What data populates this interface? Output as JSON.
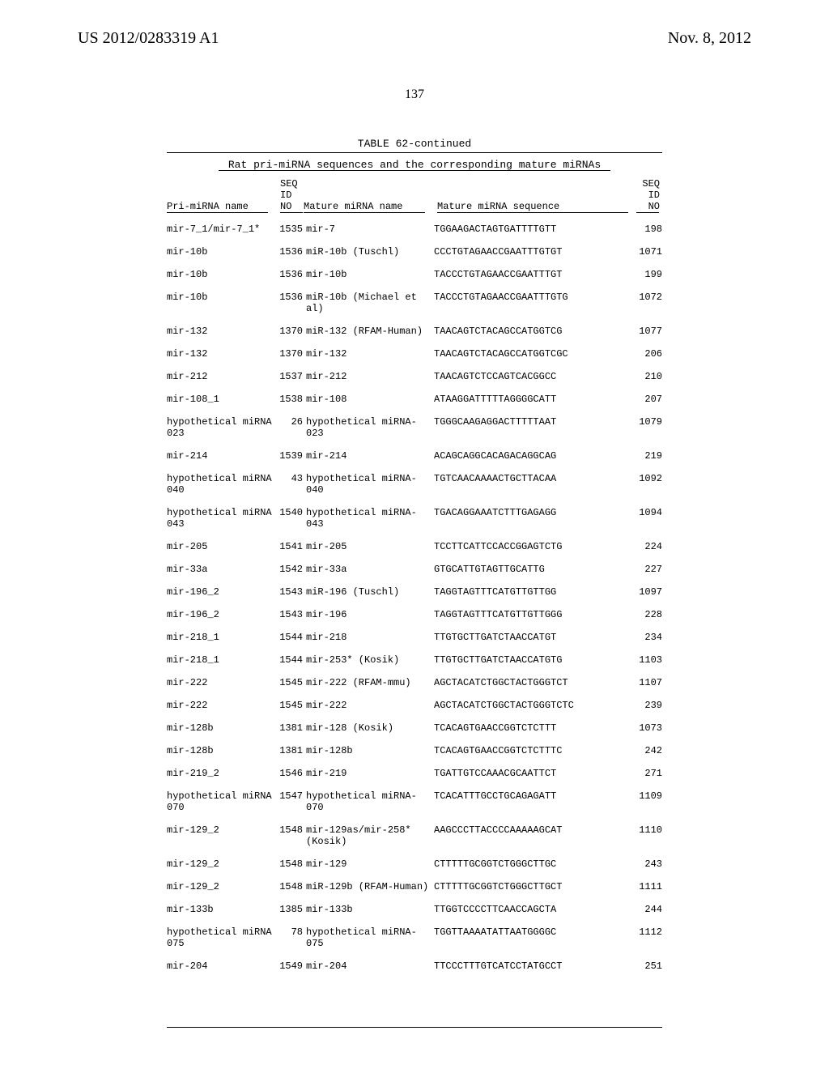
{
  "header": {
    "left": "US 2012/0283319 A1",
    "right": "Nov. 8, 2012",
    "page_number": "137"
  },
  "table": {
    "label": "TABLE 62-continued",
    "title": "Rat pri-miRNA sequences and the corresponding mature miRNAs",
    "columns": {
      "seq_id_no_left_l1": "SEQ",
      "seq_id_no_left_l2": "ID",
      "seq_id_no_left_l3": "NO",
      "pri_name": "Pri-miRNA name",
      "mature_name": "Mature miRNA name",
      "mature_seq": "Mature miRNA sequence",
      "seq_id_no_right_l1": "SEQ",
      "seq_id_no_right_l2": "ID",
      "seq_id_no_right_l3": "NO"
    },
    "rows": [
      {
        "pri": "mir-7_1/mir-7_1*",
        "seq1": "1535",
        "mname": "mir-7",
        "mseq": "TGGAAGACTAGTGATTTTGTT",
        "seq2": "198"
      },
      {
        "pri": "mir-10b",
        "seq1": "1536",
        "mname": "miR-10b (Tuschl)",
        "mseq": "CCCTGTAGAACCGAATTTGTGT",
        "seq2": "1071"
      },
      {
        "pri": "mir-10b",
        "seq1": "1536",
        "mname": "mir-10b",
        "mseq": "TACCCTGTAGAACCGAATTTGT",
        "seq2": "199"
      },
      {
        "pri": "mir-10b",
        "seq1": "1536",
        "mname": "miR-10b (Michael et al)",
        "mseq": "TACCCTGTAGAACCGAATTTGTG",
        "seq2": "1072"
      },
      {
        "pri": "mir-132",
        "seq1": "1370",
        "mname": "miR-132 (RFAM-Human)",
        "mseq": "TAACAGTCTACAGCCATGGTCG",
        "seq2": "1077"
      },
      {
        "pri": "mir-132",
        "seq1": "1370",
        "mname": "mir-132",
        "mseq": "TAACAGTCTACAGCCATGGTCGC",
        "seq2": "206"
      },
      {
        "pri": "mir-212",
        "seq1": "1537",
        "mname": "mir-212",
        "mseq": "TAACAGTCTCCAGTCACGGCC",
        "seq2": "210"
      },
      {
        "pri": "mir-108_1",
        "seq1": "1538",
        "mname": "mir-108",
        "mseq": "ATAAGGATTTTTAGGGGCATT",
        "seq2": "207"
      },
      {
        "pri": "hypothetical miRNA 023",
        "seq1": "26",
        "mname": "hypothetical miRNA-023",
        "mseq": "TGGGCAAGAGGACTTTTTAAT",
        "seq2": "1079"
      },
      {
        "pri": "mir-214",
        "seq1": "1539",
        "mname": "mir-214",
        "mseq": "ACAGCAGGCACAGACAGGCAG",
        "seq2": "219"
      },
      {
        "pri": "hypothetical miRNA 040",
        "seq1": "43",
        "mname": "hypothetical miRNA-040",
        "mseq": "TGTCAACAAAACTGCTTACAA",
        "seq2": "1092"
      },
      {
        "pri": "hypothetical miRNA 043",
        "seq1": "1540",
        "mname": "hypothetical miRNA-043",
        "mseq": "TGACAGGAAATCTTTGAGAGG",
        "seq2": "1094"
      },
      {
        "pri": "mir-205",
        "seq1": "1541",
        "mname": "mir-205",
        "mseq": "TCCTTCATTCCACCGGAGTCTG",
        "seq2": "224"
      },
      {
        "pri": "mir-33a",
        "seq1": "1542",
        "mname": "mir-33a",
        "mseq": "GTGCATTGTAGTTGCATTG",
        "seq2": "227"
      },
      {
        "pri": "mir-196_2",
        "seq1": "1543",
        "mname": "miR-196 (Tuschl)",
        "mseq": "TAGGTAGTTTCATGTTGTTGG",
        "seq2": "1097"
      },
      {
        "pri": "mir-196_2",
        "seq1": "1543",
        "mname": "mir-196",
        "mseq": "TAGGTAGTTTCATGTTGTTGGG",
        "seq2": "228"
      },
      {
        "pri": "mir-218_1",
        "seq1": "1544",
        "mname": "mir-218",
        "mseq": "TTGTGCTTGATCTAACCATGT",
        "seq2": "234"
      },
      {
        "pri": "mir-218_1",
        "seq1": "1544",
        "mname": "mir-253* (Kosik)",
        "mseq": "TTGTGCTTGATCTAACCATGTG",
        "seq2": "1103"
      },
      {
        "pri": "mir-222",
        "seq1": "1545",
        "mname": "mir-222 (RFAM-mmu)",
        "mseq": "AGCTACATCTGGCTACTGGGTCT",
        "seq2": "1107"
      },
      {
        "pri": "mir-222",
        "seq1": "1545",
        "mname": "mir-222",
        "mseq": "AGCTACATCTGGCTACTGGGTCTC",
        "seq2": "239"
      },
      {
        "pri": "mir-128b",
        "seq1": "1381",
        "mname": "mir-128 (Kosik)",
        "mseq": "TCACAGTGAACCGGTCTCTTT",
        "seq2": "1073"
      },
      {
        "pri": "mir-128b",
        "seq1": "1381",
        "mname": "mir-128b",
        "mseq": "TCACAGTGAACCGGTCTCTTTC",
        "seq2": "242"
      },
      {
        "pri": "mir-219_2",
        "seq1": "1546",
        "mname": "mir-219",
        "mseq": "TGATTGTCCAAACGCAATTCT",
        "seq2": "271"
      },
      {
        "pri": "hypothetical miRNA 070",
        "seq1": "1547",
        "mname": "hypothetical miRNA-070",
        "mseq": "TCACATTTGCCTGCAGAGATT",
        "seq2": "1109"
      },
      {
        "pri": "mir-129_2",
        "seq1": "1548",
        "mname": "mir-129as/mir-258* (Kosik)",
        "mseq": "AAGCCCTTACCCCAAAAAGCAT",
        "seq2": "1110"
      },
      {
        "pri": "mir-129_2",
        "seq1": "1548",
        "mname": "mir-129",
        "mseq": "CTTTTTGCGGTCTGGGCTTGC",
        "seq2": "243"
      },
      {
        "pri": "mir-129_2",
        "seq1": "1548",
        "mname": "miR-129b (RFAM-Human)",
        "mseq": "CTTTTTGCGGTCTGGGCTTGCT",
        "seq2": "1111"
      },
      {
        "pri": "mir-133b",
        "seq1": "1385",
        "mname": "mir-133b",
        "mseq": "TTGGTCCCCTTCAACCAGCTA",
        "seq2": "244"
      },
      {
        "pri": "hypothetical miRNA 075",
        "seq1": "78",
        "mname": "hypothetical miRNA-075",
        "mseq": "TGGTTAAAATATTAATGGGGC",
        "seq2": "1112"
      },
      {
        "pri": "mir-204",
        "seq1": "1549",
        "mname": "mir-204",
        "mseq": "TTCCCTTTGTCATCCTATGCCT",
        "seq2": "251"
      }
    ]
  }
}
